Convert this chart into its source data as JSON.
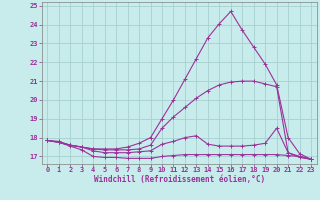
{
  "xlabel": "Windchill (Refroidissement éolien,°C)",
  "bg_color": "#c8ecec",
  "grid_color": "#a8d0d0",
  "line_color": "#993399",
  "xlim": [
    -0.5,
    23.5
  ],
  "ylim": [
    16.6,
    25.2
  ],
  "yticks": [
    17,
    18,
    19,
    20,
    21,
    22,
    23,
    24,
    25
  ],
  "xticks": [
    0,
    1,
    2,
    3,
    4,
    5,
    6,
    7,
    8,
    9,
    10,
    11,
    12,
    13,
    14,
    15,
    16,
    17,
    18,
    19,
    20,
    21,
    22,
    23
  ],
  "series1_x": [
    0,
    1,
    2,
    3,
    4,
    5,
    6,
    7,
    8,
    9,
    10,
    11,
    12,
    13,
    14,
    15,
    16,
    17,
    18,
    19,
    20,
    21,
    22,
    23
  ],
  "series1_y": [
    17.85,
    17.75,
    17.55,
    17.35,
    17.0,
    16.95,
    16.95,
    16.9,
    16.9,
    16.9,
    17.0,
    17.05,
    17.1,
    17.1,
    17.1,
    17.1,
    17.1,
    17.1,
    17.1,
    17.1,
    17.1,
    17.05,
    17.0,
    16.85
  ],
  "series2_x": [
    0,
    1,
    2,
    3,
    4,
    5,
    6,
    7,
    8,
    9,
    10,
    11,
    12,
    13,
    14,
    15,
    16,
    17,
    18,
    19,
    20,
    21,
    22,
    23
  ],
  "series2_y": [
    17.85,
    17.75,
    17.6,
    17.5,
    17.3,
    17.2,
    17.2,
    17.2,
    17.25,
    17.3,
    17.65,
    17.8,
    18.0,
    18.1,
    17.65,
    17.55,
    17.55,
    17.55,
    17.6,
    17.7,
    18.5,
    17.2,
    16.95,
    16.85
  ],
  "series3_x": [
    0,
    1,
    2,
    3,
    4,
    5,
    6,
    7,
    8,
    9,
    10,
    11,
    12,
    13,
    14,
    15,
    16,
    17,
    18,
    19,
    20,
    21,
    22,
    23
  ],
  "series3_y": [
    17.85,
    17.75,
    17.6,
    17.5,
    17.4,
    17.35,
    17.35,
    17.35,
    17.4,
    17.6,
    18.5,
    19.1,
    19.6,
    20.1,
    20.5,
    20.8,
    20.95,
    21.0,
    21.0,
    20.85,
    20.7,
    17.2,
    17.0,
    16.85
  ],
  "series4_x": [
    0,
    1,
    2,
    3,
    4,
    5,
    6,
    7,
    8,
    9,
    10,
    11,
    12,
    13,
    14,
    15,
    16,
    17,
    18,
    19,
    20,
    21,
    22,
    23
  ],
  "series4_y": [
    17.85,
    17.8,
    17.6,
    17.5,
    17.4,
    17.4,
    17.4,
    17.5,
    17.7,
    18.0,
    19.0,
    20.0,
    21.1,
    22.2,
    23.3,
    24.05,
    24.7,
    23.7,
    22.8,
    21.9,
    20.8,
    18.0,
    17.15,
    16.85
  ]
}
